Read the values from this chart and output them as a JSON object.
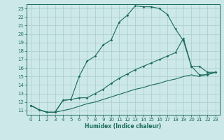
{
  "xlabel": "Humidex (Indice chaleur)",
  "bg_color": "#cce8e8",
  "grid_color": "#aacccc",
  "line_color": "#1a6b5a",
  "xlim": [
    -0.5,
    23.5
  ],
  "ylim": [
    10.5,
    23.5
  ],
  "xticks": [
    0,
    1,
    2,
    3,
    4,
    5,
    6,
    7,
    8,
    9,
    10,
    11,
    12,
    13,
    14,
    15,
    16,
    17,
    18,
    19,
    20,
    21,
    22,
    23
  ],
  "yticks": [
    11,
    12,
    13,
    14,
    15,
    16,
    17,
    18,
    19,
    20,
    21,
    22,
    23
  ],
  "curve1_x": [
    0,
    1,
    2,
    3,
    4,
    5,
    6,
    7,
    8,
    9,
    10,
    11,
    12,
    13,
    14,
    15,
    16,
    17,
    18,
    19,
    20,
    21,
    22,
    23
  ],
  "curve1_y": [
    11.6,
    11.1,
    10.8,
    10.8,
    12.2,
    12.3,
    15.0,
    16.8,
    17.4,
    18.7,
    19.3,
    21.4,
    22.2,
    23.3,
    23.2,
    23.2,
    23.0,
    22.3,
    20.6,
    19.2,
    16.2,
    15.2,
    15.2,
    15.5
  ],
  "curve2_x": [
    0,
    1,
    2,
    3,
    4,
    5,
    6,
    7,
    8,
    9,
    10,
    11,
    12,
    13,
    14,
    15,
    16,
    17,
    18,
    19,
    20,
    21,
    22,
    23
  ],
  "curve2_y": [
    11.6,
    11.1,
    10.8,
    10.8,
    12.2,
    12.3,
    12.5,
    12.5,
    13.0,
    13.5,
    14.2,
    14.8,
    15.3,
    15.8,
    16.2,
    16.6,
    17.0,
    17.4,
    17.8,
    19.5,
    16.2,
    16.2,
    15.5,
    15.5
  ],
  "curve3_x": [
    0,
    1,
    2,
    3,
    4,
    5,
    6,
    7,
    8,
    9,
    10,
    11,
    12,
    13,
    14,
    15,
    16,
    17,
    18,
    19,
    20,
    21,
    22,
    23
  ],
  "curve3_y": [
    11.6,
    11.1,
    10.8,
    10.8,
    11.0,
    11.2,
    11.5,
    11.8,
    12.0,
    12.3,
    12.6,
    12.9,
    13.2,
    13.5,
    13.7,
    14.0,
    14.2,
    14.5,
    14.7,
    15.0,
    15.2,
    15.0,
    15.3,
    15.5
  ]
}
